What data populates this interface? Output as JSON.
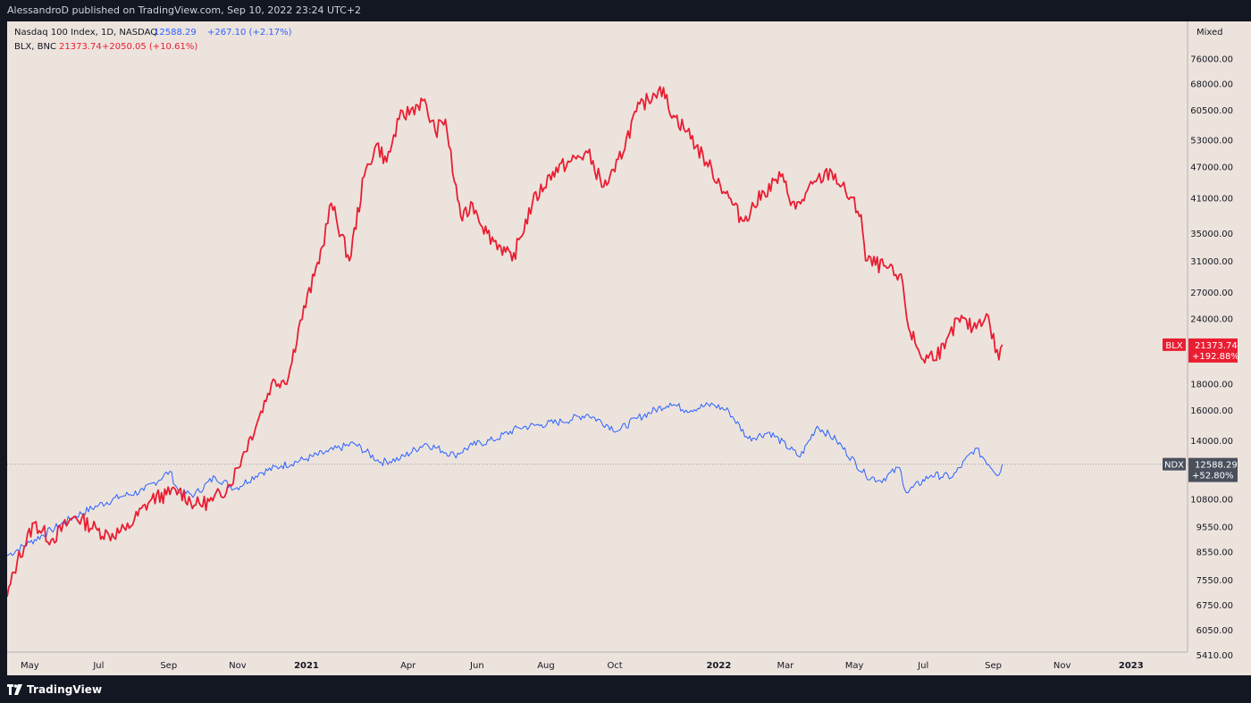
{
  "header": {
    "published": "AlessandroD published on TradingView.com, Sep 10, 2022 23:24 UTC+2"
  },
  "footer": {
    "brand": "TradingView"
  },
  "colors": {
    "ndx": "#2962ff",
    "blx": "#e91e32",
    "background": "#ede3dd",
    "frame": "#131722",
    "badge_ndx": "#4a4f5c"
  },
  "chart_data": {
    "type": "line",
    "scale": "log",
    "scale_mode_label": "Mixed",
    "ylim": [
      5100,
      84000
    ],
    "x_axis_labels": [
      "May",
      "Jul",
      "Sep",
      "Nov",
      "2021",
      "Apr",
      "Jun",
      "Aug",
      "Oct",
      "2022",
      "Mar",
      "May",
      "Jul",
      "Sep",
      "Nov",
      "2023"
    ],
    "x_axis_ticks": [
      "2020-05-01",
      "2020-07-01",
      "2020-09-01",
      "2020-11-01",
      "2021-01-01",
      "2021-04-01",
      "2021-06-01",
      "2021-08-01",
      "2021-10-01",
      "2022-01-01",
      "2022-03-01",
      "2022-05-01",
      "2022-07-01",
      "2022-09-01",
      "2022-11-01",
      "2023-01-01"
    ],
    "x_range": [
      "2020-04-11",
      "2023-02-20"
    ],
    "y_ticks": [
      76000,
      68000,
      60500,
      53000,
      47000,
      41000,
      35000,
      31000,
      27000,
      24000,
      18000,
      16000,
      14000,
      10800,
      9550,
      8550,
      7550,
      6750,
      6050,
      5410
    ],
    "y_tick_labels": [
      "76000.00",
      "68000.00",
      "60500.00",
      "53000.00",
      "47000.00",
      "41000.00",
      "35000.00",
      "31000.00",
      "27000.00",
      "24000.00",
      "18000.00",
      "16000.00",
      "14000.00",
      "10800.00",
      "9550.00",
      "8550.00",
      "7550.00",
      "6750.00",
      "6050.00",
      "5410.00"
    ],
    "legend": [
      {
        "name": "Nasdaq 100 Index, 1D, NASDAQ",
        "last": "12588.29",
        "change": "+267.10 (+2.17%)"
      },
      {
        "name": "BLX, BNC",
        "last": "21373.74",
        "change": "+2050.05 (+10.61%)"
      }
    ],
    "badges": [
      {
        "series": "BLX",
        "value": "21373.74",
        "pct": "+192.88%"
      },
      {
        "series": "NDX",
        "value": "12588.29",
        "pct": "+52.80%"
      }
    ],
    "series": [
      {
        "name": "NDX",
        "dates": [
          "2020-04-11",
          "2020-05-01",
          "2020-05-20",
          "2020-06-10",
          "2020-07-01",
          "2020-07-20",
          "2020-08-10",
          "2020-09-02",
          "2020-09-10",
          "2020-09-24",
          "2020-10-12",
          "2020-10-30",
          "2020-11-20",
          "2020-12-10",
          "2021-01-01",
          "2021-01-20",
          "2021-02-12",
          "2021-03-08",
          "2021-03-25",
          "2021-04-16",
          "2021-05-12",
          "2021-05-28",
          "2021-06-15",
          "2021-07-08",
          "2021-07-28",
          "2021-08-15",
          "2021-09-07",
          "2021-10-04",
          "2021-10-20",
          "2021-11-19",
          "2021-12-03",
          "2021-12-27",
          "2022-01-10",
          "2022-01-27",
          "2022-02-15",
          "2022-03-14",
          "2022-03-29",
          "2022-04-15",
          "2022-05-11",
          "2022-05-24",
          "2022-06-10",
          "2022-06-16",
          "2022-07-08",
          "2022-07-27",
          "2022-08-16",
          "2022-09-06",
          "2022-09-09"
        ],
        "values": [
          8400,
          8900,
          9400,
          10000,
          10500,
          10900,
          11200,
          12200,
          11100,
          11000,
          11900,
          11300,
          12100,
          12500,
          12900,
          13300,
          13800,
          12700,
          12900,
          13800,
          13100,
          13700,
          14000,
          14800,
          15000,
          15200,
          15700,
          14600,
          15400,
          16500,
          16000,
          16400,
          15900,
          14100,
          14500,
          13000,
          14900,
          14000,
          12000,
          11700,
          12400,
          11100,
          12000,
          11900,
          13500,
          12000,
          12590
        ]
      },
      {
        "name": "BLX",
        "dates": [
          "2020-04-11",
          "2020-04-20",
          "2020-05-05",
          "2020-05-20",
          "2020-06-10",
          "2020-06-30",
          "2020-07-10",
          "2020-07-25",
          "2020-08-17",
          "2020-08-30",
          "2020-09-10",
          "2020-09-25",
          "2020-10-10",
          "2020-10-25",
          "2020-11-05",
          "2020-11-20",
          "2020-12-01",
          "2020-12-16",
          "2020-12-25",
          "2021-01-08",
          "2021-01-15",
          "2021-01-23",
          "2021-02-08",
          "2021-02-21",
          "2021-03-04",
          "2021-03-13",
          "2021-03-24",
          "2021-04-14",
          "2021-04-25",
          "2021-05-04",
          "2021-05-12",
          "2021-05-19",
          "2021-05-28",
          "2021-06-10",
          "2021-06-22",
          "2021-07-02",
          "2021-07-20",
          "2021-08-07",
          "2021-08-22",
          "2021-09-07",
          "2021-09-21",
          "2021-10-01",
          "2021-10-20",
          "2021-11-10",
          "2021-11-22",
          "2021-12-04",
          "2021-12-21",
          "2022-01-10",
          "2022-01-22",
          "2022-02-10",
          "2022-02-25",
          "2022-03-10",
          "2022-03-28",
          "2022-04-11",
          "2022-05-07",
          "2022-05-11",
          "2022-05-30",
          "2022-06-13",
          "2022-06-18",
          "2022-07-01",
          "2022-07-20",
          "2022-08-01",
          "2022-08-14",
          "2022-08-26",
          "2022-09-06",
          "2022-09-09"
        ],
        "values": [
          7000,
          8200,
          9700,
          9000,
          10000,
          9400,
          9200,
          9400,
          10800,
          11000,
          11200,
          10500,
          10700,
          11500,
          13000,
          15500,
          18000,
          18500,
          23000,
          29000,
          33000,
          40000,
          31000,
          45000,
          52000,
          48000,
          58000,
          63000,
          55000,
          58000,
          44000,
          37000,
          40000,
          35000,
          33000,
          31000,
          40000,
          46000,
          48000,
          50000,
          43000,
          46000,
          60000,
          67000,
          59000,
          55000,
          48000,
          41000,
          37000,
          42000,
          45000,
          39000,
          44000,
          46000,
          38000,
          31000,
          30000,
          28000,
          23000,
          20000,
          21000,
          24000,
          23000,
          24500,
          20000,
          21374
        ]
      }
    ]
  }
}
